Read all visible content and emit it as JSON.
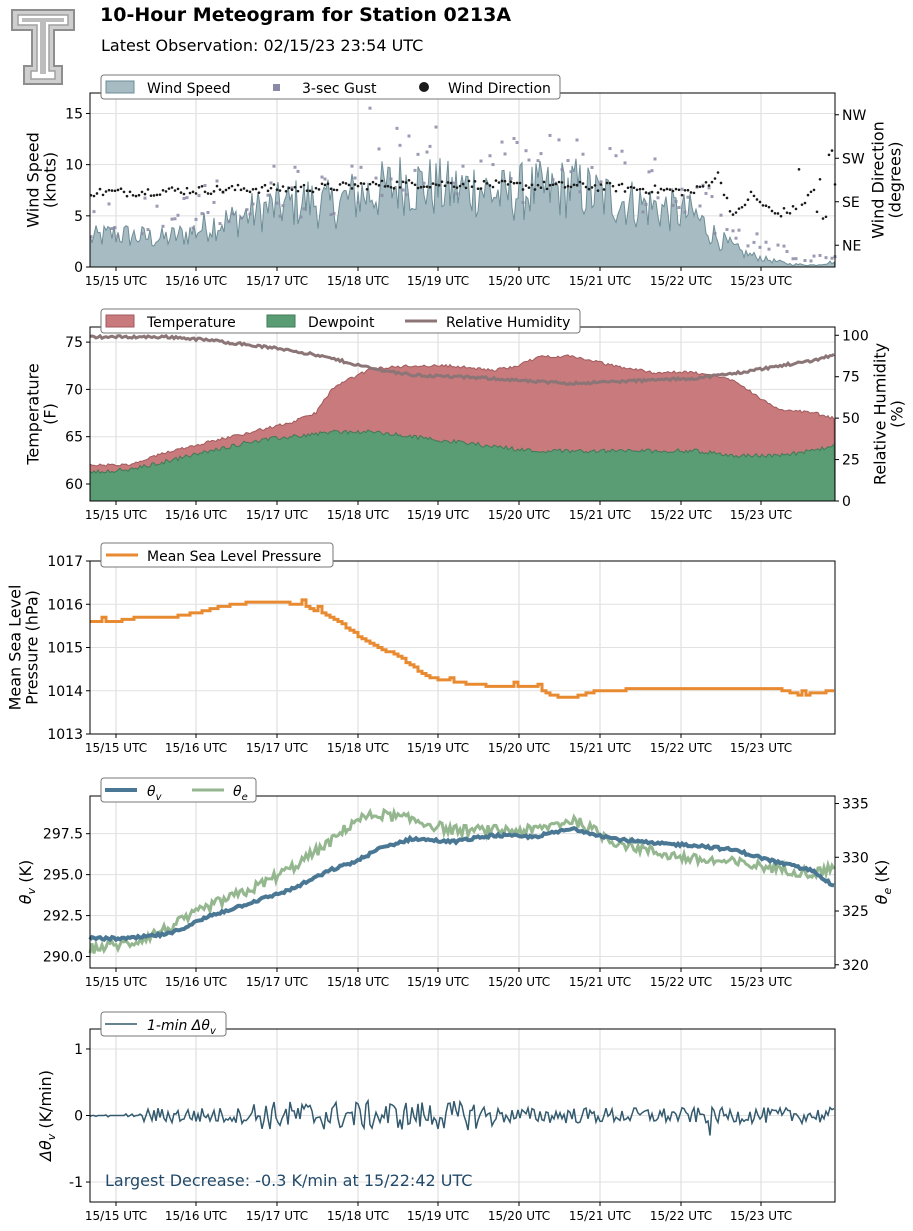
{
  "header": {
    "title": "10-Hour Meteogram for Station 0213A",
    "subtitle": "Latest Observation: 02/15/23 23:54 UTC"
  },
  "colors": {
    "wind_speed": "#a6bcc2",
    "wind_speed_edge": "#6e8d96",
    "gust": "#8a8aa6",
    "direction": "#1a1a1a",
    "temperature": "#c97a7c",
    "dewpoint": "#5a9d75",
    "rh": "#8c7577",
    "pressure": "#e88a30",
    "theta_v": "#4a7894",
    "theta_e": "#94b78f",
    "delta_theta": "#335a6e",
    "annotation": "#234a6a"
  },
  "x_ticks": [
    "15/15 UTC",
    "15/16 UTC",
    "15/17 UTC",
    "15/18 UTC",
    "15/19 UTC",
    "15/20 UTC",
    "15/21 UTC",
    "15/22 UTC",
    "15/23 UTC"
  ],
  "chart_data": [
    {
      "type": "area",
      "panel": "wind",
      "ylabel": "Wind Speed\n(knots)",
      "y2label": "Wind Direction\n(degrees)",
      "ylim": [
        0,
        17
      ],
      "yticks": [
        0,
        5,
        10,
        15
      ],
      "y2ticks": [
        "NE",
        "SE",
        "SW",
        "NW"
      ],
      "y2values": [
        45,
        135,
        225,
        315
      ],
      "y2lim": [
        0,
        360
      ],
      "legend": [
        "Wind Speed",
        "3-sec Gust",
        "Wind Direction"
      ],
      "series": [
        {
          "name": "Wind Speed",
          "x": [
            0,
            0.3,
            0.6,
            0.9,
            1.2,
            1.5,
            1.8,
            2.1,
            2.4,
            2.7,
            3.0,
            3.3,
            3.6,
            3.9,
            4.2,
            4.5,
            4.8,
            5.1,
            5.4,
            5.7,
            6.0,
            6.3,
            6.6,
            6.9,
            7.2,
            7.5,
            7.8,
            8.1,
            8.4,
            8.7,
            9.0,
            9.2
          ],
          "values": [
            3,
            3.5,
            3.2,
            3.0,
            3.5,
            4.5,
            5.0,
            6.0,
            6.5,
            7.0,
            6.5,
            7.5,
            8.0,
            9.0,
            8.5,
            8.0,
            8.5,
            7.5,
            8.0,
            8.0,
            8.5,
            7.5,
            7.0,
            6.5,
            6.0,
            5.5,
            3.0,
            1.5,
            0.8,
            0.3,
            0.2,
            0.5
          ]
        },
        {
          "name": "3-sec Gust",
          "x": [
            0,
            0.5,
            1.0,
            1.5,
            2.0,
            2.5,
            3.0,
            3.3,
            3.5,
            4.0,
            4.5,
            5.0,
            5.5,
            6.0,
            6.5,
            7.0,
            7.5,
            8.0,
            8.5,
            9.0
          ],
          "values": [
            5.5,
            6,
            5.5,
            7,
            8,
            9,
            10,
            11,
            14,
            12,
            11,
            10,
            11,
            11,
            10,
            9,
            8,
            5,
            2,
            1
          ]
        },
        {
          "name": "Wind Direction",
          "x": [
            0,
            0.5,
            1.0,
            1.5,
            2.0,
            2.5,
            3.0,
            3.5,
            4.0,
            4.5,
            5.0,
            5.5,
            6.0,
            6.5,
            7.0,
            7.5,
            7.8,
            8.0,
            8.2,
            8.5,
            8.8,
            9.0,
            9.2
          ],
          "values": [
            155,
            155,
            158,
            160,
            162,
            162,
            165,
            170,
            172,
            172,
            170,
            168,
            168,
            165,
            160,
            155,
            190,
            100,
            150,
            110,
            120,
            160,
            235
          ]
        }
      ]
    },
    {
      "type": "area",
      "panel": "temperature",
      "ylabel": "Temperature\n(F)",
      "y2label": "Relative Humidity\n(%)",
      "ylim": [
        58.2,
        76.6
      ],
      "yticks": [
        60,
        65,
        70,
        75
      ],
      "y2lim": [
        0,
        105
      ],
      "y2ticks": [
        0,
        25,
        50,
        75,
        100
      ],
      "legend": [
        "Temperature",
        "Dewpoint",
        "Relative Humidity"
      ],
      "series": [
        {
          "name": "Temperature",
          "x": [
            0,
            0.5,
            1.0,
            1.5,
            2.0,
            2.5,
            2.8,
            3.0,
            3.2,
            3.5,
            4.0,
            4.5,
            5.0,
            5.3,
            5.6,
            6.0,
            6.5,
            7.0,
            7.5,
            8.0,
            8.5,
            9.0,
            9.2
          ],
          "values": [
            62,
            62,
            63.5,
            64.5,
            65.5,
            66.5,
            67.5,
            70,
            71,
            72.2,
            72.5,
            72.5,
            72,
            72.5,
            73.5,
            73.5,
            72.5,
            71.8,
            71.8,
            71,
            68,
            67.5,
            67
          ]
        },
        {
          "name": "Dewpoint",
          "x": [
            0,
            0.5,
            1.0,
            1.5,
            2.0,
            2.5,
            3.0,
            3.5,
            4.0,
            4.5,
            5.0,
            5.5,
            6.0,
            6.5,
            7.0,
            7.5,
            8.0,
            8.5,
            9.0,
            9.2
          ],
          "values": [
            61.3,
            61.5,
            62.5,
            63.5,
            64.5,
            65,
            65.5,
            65.5,
            65,
            64.5,
            64,
            63.5,
            63.5,
            63.5,
            63.5,
            63.5,
            63,
            63,
            63.5,
            64
          ]
        },
        {
          "name": "Relative Humidity",
          "x": [
            0,
            0.5,
            1.0,
            1.5,
            2.0,
            2.5,
            3.0,
            3.5,
            4.0,
            4.5,
            5.0,
            5.5,
            6.0,
            6.5,
            7.0,
            7.5,
            8.0,
            8.5,
            9.0,
            9.2
          ],
          "values": [
            99,
            99,
            99,
            97,
            94,
            91,
            86,
            80,
            76,
            75,
            74,
            72,
            71,
            72,
            73,
            74,
            77,
            81,
            85,
            88
          ]
        }
      ]
    },
    {
      "type": "line",
      "panel": "pressure",
      "ylabel": "Mean Sea Level\nPressure (hPa)",
      "ylim": [
        1013,
        1017
      ],
      "yticks": [
        1013,
        1014,
        1015,
        1016,
        1017
      ],
      "legend": [
        "Mean Sea Level Pressure"
      ],
      "series": [
        {
          "name": "Mean Sea Level Pressure",
          "x": [
            0,
            0.3,
            0.6,
            1.0,
            1.3,
            1.5,
            1.8,
            2.0,
            2.3,
            2.6,
            3.0,
            3.3,
            3.6,
            3.9,
            4.2,
            4.5,
            5.0,
            5.5,
            5.8,
            6.0,
            6.3,
            7.0,
            7.5,
            8.0,
            8.5,
            8.8,
            9.2
          ],
          "values": [
            1015.6,
            1015.6,
            1015.7,
            1015.7,
            1015.8,
            1015.9,
            1016.0,
            1016.05,
            1016.05,
            1016.0,
            1015.7,
            1015.3,
            1015.0,
            1014.7,
            1014.3,
            1014.2,
            1014.1,
            1014.1,
            1013.85,
            1013.85,
            1014.0,
            1014.05,
            1014.05,
            1014.05,
            1014.05,
            1013.9,
            1014.0
          ]
        }
      ]
    },
    {
      "type": "line",
      "panel": "theta",
      "ylabel": "θv (K)",
      "y2label": "θe (K)",
      "ylim": [
        289.3,
        299.8
      ],
      "yticks": [
        290.0,
        292.5,
        295.0,
        297.5
      ],
      "y2lim": [
        319.7,
        335.7
      ],
      "y2ticks": [
        320,
        325,
        330,
        335
      ],
      "legend": [
        "θv",
        "θe"
      ],
      "series": [
        {
          "name": "θv",
          "x": [
            0,
            0.5,
            1.0,
            1.5,
            2.0,
            2.5,
            3.0,
            3.3,
            3.6,
            4.0,
            4.5,
            5.0,
            5.5,
            6.0,
            6.5,
            7.0,
            7.5,
            8.0,
            8.5,
            9.0,
            9.2
          ],
          "values": [
            291.1,
            291.1,
            291.4,
            292.5,
            293.3,
            294.1,
            295.3,
            295.8,
            296.6,
            297.2,
            297.0,
            297.4,
            297.3,
            297.8,
            297.2,
            296.9,
            296.8,
            296.5,
            295.8,
            295.2,
            294.4
          ]
        },
        {
          "name": "θe",
          "x": [
            0,
            0.5,
            1.0,
            1.5,
            2.0,
            2.5,
            3.0,
            3.3,
            3.6,
            4.0,
            4.5,
            5.0,
            5.5,
            6.0,
            6.5,
            7.0,
            7.5,
            8.0,
            8.5,
            9.0,
            9.2
          ],
          "values": [
            321.5,
            322.0,
            323.5,
            325.5,
            327.0,
            329.0,
            331.5,
            333.5,
            334.0,
            333.5,
            332.5,
            332.5,
            332.5,
            333.5,
            331.5,
            330.5,
            329.8,
            329.5,
            329.0,
            328.5,
            329.0
          ]
        }
      ]
    },
    {
      "type": "line",
      "panel": "delta",
      "ylabel": "Δθv (K/min)",
      "ylim": [
        -1.3,
        1.3
      ],
      "yticks": [
        -1,
        0,
        1
      ],
      "legend": [
        "1-min Δθv"
      ],
      "annotation": "Largest Decrease: -0.3 K/min at 15/22:42 UTC",
      "series": [
        {
          "name": "1-min Δθv",
          "amplitude_range": [
            -0.3,
            0.25
          ]
        }
      ]
    }
  ]
}
